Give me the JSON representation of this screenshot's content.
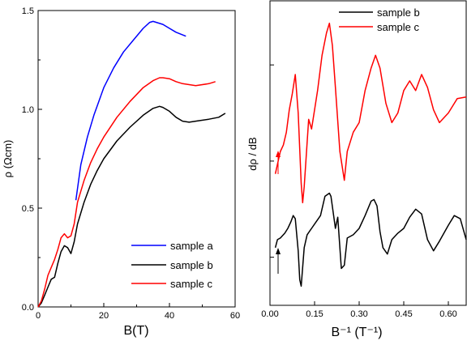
{
  "chart_data": [
    {
      "type": "line",
      "title": "",
      "xlabel": "B(T)",
      "ylabel": "ρ (Ωcm)",
      "xlim": [
        0,
        60
      ],
      "ylim": [
        0,
        1.5
      ],
      "xticks": [
        "0",
        "20",
        "40",
        "60"
      ],
      "yticks": [
        "0.0",
        "0.5",
        "1.0",
        "1.5"
      ],
      "grid": false,
      "legend_position": "bottom-right",
      "series": [
        {
          "name": "sample a",
          "color": "#0000ff",
          "x": [
            11.5,
            13,
            15,
            17,
            20,
            23,
            26,
            29,
            32,
            34,
            35,
            36,
            38,
            40,
            42,
            45
          ],
          "y": [
            0.54,
            0.72,
            0.86,
            0.97,
            1.11,
            1.21,
            1.29,
            1.35,
            1.41,
            1.44,
            1.445,
            1.44,
            1.43,
            1.41,
            1.39,
            1.37
          ]
        },
        {
          "name": "sample b",
          "color": "#000000",
          "x": [
            0,
            1,
            2,
            3,
            4,
            5,
            6,
            7,
            8,
            9,
            10,
            11,
            12,
            14,
            16,
            18,
            20,
            24,
            28,
            32,
            35,
            37,
            38,
            40,
            42,
            44,
            46,
            48,
            52,
            55,
            57
          ],
          "y": [
            0.0,
            0.02,
            0.06,
            0.1,
            0.14,
            0.15,
            0.22,
            0.28,
            0.31,
            0.3,
            0.27,
            0.33,
            0.42,
            0.53,
            0.62,
            0.69,
            0.75,
            0.84,
            0.91,
            0.97,
            1.005,
            1.015,
            1.01,
            0.99,
            0.96,
            0.94,
            0.935,
            0.94,
            0.95,
            0.96,
            0.98
          ]
        },
        {
          "name": "sample c",
          "color": "#ff0000",
          "x": [
            0,
            1,
            2,
            3,
            4,
            5,
            6,
            7,
            8,
            9,
            10,
            11,
            12,
            14,
            16,
            18,
            20,
            24,
            28,
            32,
            35,
            37,
            38,
            40,
            42,
            44,
            46,
            48,
            52,
            54
          ],
          "y": [
            0.0,
            0.03,
            0.09,
            0.16,
            0.2,
            0.24,
            0.29,
            0.35,
            0.37,
            0.35,
            0.36,
            0.42,
            0.53,
            0.64,
            0.73,
            0.8,
            0.86,
            0.96,
            1.04,
            1.11,
            1.145,
            1.16,
            1.16,
            1.155,
            1.14,
            1.13,
            1.125,
            1.12,
            1.13,
            1.14
          ]
        }
      ]
    },
    {
      "type": "line",
      "title": "",
      "xlabel": "B⁻¹ (T⁻¹)",
      "ylabel": "dρ / dB",
      "xlim": [
        0,
        0.66
      ],
      "xticks": [
        "0.00",
        "0.15",
        "0.30",
        "0.45",
        "0.60"
      ],
      "y_tick_labels_shown": false,
      "grid": false,
      "legend_position": "top-right",
      "annotations": [
        "arrow (black) at B⁻¹ ≈ 0.02",
        "arrow (red) at B⁻¹ ≈ 0.02"
      ],
      "series": [
        {
          "name": "sample b",
          "color": "#000000",
          "x": [
            0.018,
            0.025,
            0.035,
            0.05,
            0.06,
            0.07,
            0.078,
            0.085,
            0.095,
            0.1,
            0.105,
            0.115,
            0.125,
            0.14,
            0.155,
            0.17,
            0.185,
            0.2,
            0.205,
            0.22,
            0.228,
            0.232,
            0.24,
            0.25,
            0.26,
            0.28,
            0.3,
            0.32,
            0.34,
            0.35,
            0.36,
            0.37,
            0.38,
            0.395,
            0.41,
            0.43,
            0.45,
            0.47,
            0.49,
            0.51,
            0.53,
            0.55,
            0.57,
            0.6,
            0.62,
            0.64,
            0.66
          ],
          "y": [
            3.3,
            3.55,
            3.6,
            3.75,
            3.9,
            4.1,
            4.3,
            4.2,
            3.2,
            2.3,
            2.1,
            3.3,
            3.7,
            3.9,
            4.1,
            4.3,
            4.9,
            5.0,
            4.9,
            3.9,
            4.25,
            3.7,
            2.65,
            2.75,
            3.6,
            3.7,
            3.9,
            4.3,
            4.75,
            4.8,
            4.6,
            3.8,
            3.3,
            3.1,
            3.55,
            3.75,
            3.9,
            4.25,
            4.5,
            4.35,
            3.55,
            3.2,
            3.5,
            4.0,
            4.3,
            4.2,
            3.55
          ]
        },
        {
          "name": "sample c",
          "color": "#ff0000",
          "x": [
            0.018,
            0.025,
            0.035,
            0.045,
            0.055,
            0.065,
            0.075,
            0.085,
            0.095,
            0.105,
            0.11,
            0.115,
            0.13,
            0.14,
            0.16,
            0.175,
            0.19,
            0.2,
            0.21,
            0.22,
            0.235,
            0.25,
            0.26,
            0.28,
            0.3,
            0.32,
            0.34,
            0.355,
            0.37,
            0.39,
            0.41,
            0.43,
            0.45,
            0.47,
            0.49,
            0.51,
            0.53,
            0.55,
            0.57,
            0.6,
            0.63,
            0.66
          ],
          "y": [
            5.6,
            5.9,
            6.3,
            6.5,
            6.9,
            7.6,
            8.1,
            8.7,
            7.5,
            5.3,
            4.7,
            5.2,
            7.3,
            7.0,
            8.2,
            9.3,
            10.0,
            10.3,
            9.6,
            8.3,
            6.3,
            5.4,
            6.3,
            6.9,
            7.2,
            8.2,
            8.9,
            9.3,
            8.9,
            7.8,
            7.2,
            7.5,
            8.2,
            8.5,
            8.2,
            8.7,
            8.3,
            7.6,
            7.2,
            7.5,
            7.95,
            8.0
          ]
        }
      ]
    }
  ]
}
